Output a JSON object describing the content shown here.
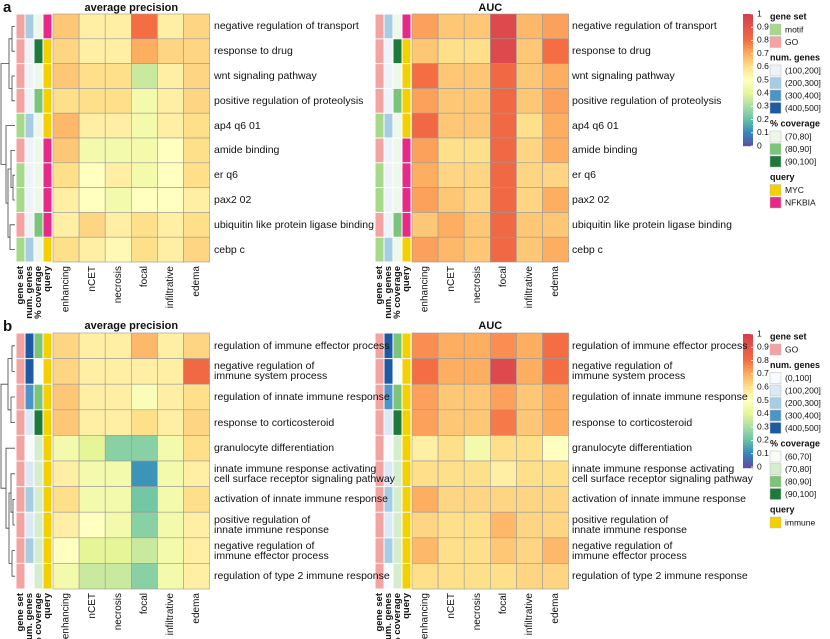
{
  "panels": [
    {
      "label": "a",
      "rows": [
        "negative regulation of transport",
        "response to drug",
        "wnt signaling pathway",
        "positive regulation of proteolysis",
        "ap4 q6 01",
        "amide binding",
        "er q6",
        "pax2 02",
        "ubiquitin like protein ligase binding",
        "cebp c"
      ],
      "annotations": [
        {
          "name": "gene set",
          "values": [
            "GO",
            "GO",
            "GO",
            "GO",
            "motif",
            "GO",
            "motif",
            "motif",
            "GO",
            "motif"
          ]
        },
        {
          "name": "num. genes",
          "values": [
            "(200,300]",
            "(100,200]",
            "(100,200]",
            "(100,200]",
            "(200,300]",
            "(100,200]",
            "(100,200]",
            "(100,200]",
            "(100,200]",
            "(200,300]"
          ]
        },
        {
          "name": "% coverage",
          "values": [
            "(70,80]",
            "(90,100]",
            "(70,80]",
            "(80,90]",
            "(70,80]",
            "(70,80]",
            "(70,80]",
            "(70,80]",
            "(80,90]",
            "(70,80]"
          ]
        },
        {
          "name": "query",
          "values": [
            "NFKBIA",
            "MYC",
            "MYC",
            "MYC",
            "MYC",
            "NFKBIA",
            "NFKBIA",
            "NFKBIA",
            "NFKBIA",
            "MYC"
          ]
        }
      ],
      "heatmaps": [
        {
          "title": "average precision",
          "columns": [
            "enhancing",
            "nCET",
            "necrosis",
            "focal",
            "infiltrative",
            "edema"
          ],
          "values": [
            [
              0.65,
              0.55,
              0.55,
              0.8,
              0.55,
              0.62
            ],
            [
              0.62,
              0.55,
              0.55,
              0.7,
              0.62,
              0.62
            ],
            [
              0.65,
              0.6,
              0.6,
              0.35,
              0.55,
              0.62
            ],
            [
              0.6,
              0.6,
              0.6,
              0.45,
              0.55,
              0.62
            ],
            [
              0.68,
              0.55,
              0.55,
              0.45,
              0.55,
              0.6
            ],
            [
              0.65,
              0.45,
              0.45,
              0.45,
              0.5,
              0.6
            ],
            [
              0.6,
              0.5,
              0.55,
              0.45,
              0.5,
              0.6
            ],
            [
              0.55,
              0.5,
              0.45,
              0.5,
              0.5,
              0.55
            ],
            [
              0.55,
              0.62,
              0.55,
              0.6,
              0.55,
              0.6
            ],
            [
              0.6,
              0.55,
              0.52,
              0.6,
              0.55,
              0.62
            ]
          ]
        },
        {
          "title": "AUC",
          "columns": [
            "enhancing",
            "nCET",
            "necrosis",
            "focal",
            "infiltrative",
            "edema"
          ],
          "values": [
            [
              0.72,
              0.65,
              0.65,
              0.95,
              0.68,
              0.72
            ],
            [
              0.65,
              0.6,
              0.6,
              0.95,
              0.65,
              0.8
            ],
            [
              0.8,
              0.65,
              0.65,
              0.82,
              0.65,
              0.7
            ],
            [
              0.72,
              0.65,
              0.65,
              0.82,
              0.65,
              0.72
            ],
            [
              0.82,
              0.65,
              0.65,
              0.82,
              0.6,
              0.7
            ],
            [
              0.72,
              0.6,
              0.6,
              0.82,
              0.62,
              0.7
            ],
            [
              0.7,
              0.62,
              0.62,
              0.82,
              0.62,
              0.62
            ],
            [
              0.72,
              0.65,
              0.62,
              0.82,
              0.62,
              0.7
            ],
            [
              0.65,
              0.7,
              0.65,
              0.82,
              0.65,
              0.65
            ],
            [
              0.72,
              0.68,
              0.65,
              0.82,
              0.65,
              0.7
            ]
          ]
        }
      ],
      "scale": {
        "ticks": [
          1,
          0.9,
          0.8,
          0.7,
          0.6,
          0.5,
          0.4,
          0.3,
          0.2,
          0.1,
          0
        ],
        "colors": [
          "#d53e4f",
          "#e5534b",
          "#f46d43",
          "#fdae61",
          "#fee08b",
          "#ffffbf",
          "#e6f598",
          "#abdda4",
          "#66c2a5",
          "#3288bd",
          "#5e4fa2"
        ]
      },
      "legends": [
        {
          "title": "gene set",
          "levels": [
            {
              "name": "motif",
              "color": "#a6d98a"
            },
            {
              "name": "GO",
              "color": "#f4a3a3"
            }
          ]
        },
        {
          "title": "num. genes",
          "levels": [
            {
              "name": "(100,200]",
              "color": "#eef3fa"
            },
            {
              "name": "(200,300]",
              "color": "#a6cde3"
            },
            {
              "name": "(300,400]",
              "color": "#4d94c8"
            },
            {
              "name": "(400,500]",
              "color": "#1c5aa3"
            }
          ]
        },
        {
          "title": "% coverage",
          "levels": [
            {
              "name": "(70,80]",
              "color": "#eef8ea"
            },
            {
              "name": "(80,90]",
              "color": "#7ac57a"
            },
            {
              "name": "(90,100]",
              "color": "#1e7a3a"
            }
          ]
        },
        {
          "title": "query",
          "levels": [
            {
              "name": "MYC",
              "color": "#f5d000"
            },
            {
              "name": "NFKBIA",
              "color": "#e7298a"
            }
          ]
        }
      ]
    },
    {
      "label": "b",
      "rows": [
        "regulation of immune effector process",
        "negative regulation of\nimmune system process",
        "regulation of innate immune response",
        "response to corticosteroid",
        "granulocyte differentiation",
        "innate immune response activating\ncell surface receptor signaling pathway",
        "activation of innate immune response",
        "positive regulation of\ninnate immune response",
        "negative regulation of\nimmune effector process",
        "regulation of type 2 immune response"
      ],
      "annotations": [
        {
          "name": "gene set",
          "values": [
            "GO",
            "GO",
            "GO",
            "GO",
            "GO",
            "GO",
            "GO",
            "GO",
            "GO",
            "GO"
          ]
        },
        {
          "name": "num. genes",
          "values": [
            "(400,500]",
            "(400,500]",
            "(300,400]",
            "(100,200]",
            "(0,100]",
            "(100,200]",
            "(200,300]",
            "(100,200]",
            "(200,300]",
            "(0,100]"
          ]
        },
        {
          "name": "% coverage",
          "values": [
            "(80,90]",
            "(60,70]",
            "(80,90]",
            "(90,100]",
            "(70,80]",
            "(70,80]",
            "(70,80]",
            "(70,80]",
            "(70,80]",
            "(70,80]"
          ]
        },
        {
          "name": "query",
          "values": [
            "immune",
            "immune",
            "immune",
            "immune",
            "immune",
            "immune",
            "immune",
            "immune",
            "immune",
            "immune"
          ]
        }
      ],
      "heatmaps": [
        {
          "title": "average precision",
          "columns": [
            "enhancing",
            "nCET",
            "necrosis",
            "focal",
            "infiltrative",
            "edema"
          ],
          "values": [
            [
              0.62,
              0.55,
              0.55,
              0.68,
              0.55,
              0.62
            ],
            [
              0.62,
              0.55,
              0.55,
              0.55,
              0.55,
              0.82
            ],
            [
              0.65,
              0.55,
              0.55,
              0.48,
              0.55,
              0.6
            ],
            [
              0.65,
              0.55,
              0.55,
              0.6,
              0.55,
              0.62
            ],
            [
              0.45,
              0.4,
              0.25,
              0.25,
              0.45,
              0.6
            ],
            [
              0.55,
              0.45,
              0.45,
              0.12,
              0.45,
              0.55
            ],
            [
              0.6,
              0.45,
              0.45,
              0.22,
              0.45,
              0.6
            ],
            [
              0.55,
              0.5,
              0.45,
              0.25,
              0.45,
              0.55
            ],
            [
              0.5,
              0.4,
              0.4,
              0.35,
              0.45,
              0.55
            ],
            [
              0.45,
              0.35,
              0.35,
              0.25,
              0.45,
              0.55
            ]
          ]
        },
        {
          "title": "AUC",
          "columns": [
            "enhancing",
            "nCET",
            "necrosis",
            "focal",
            "infiltrative",
            "edema"
          ],
          "values": [
            [
              0.75,
              0.7,
              0.7,
              0.75,
              0.7,
              0.8
            ],
            [
              0.8,
              0.7,
              0.7,
              0.95,
              0.7,
              0.8
            ],
            [
              0.72,
              0.65,
              0.65,
              0.72,
              0.65,
              0.7
            ],
            [
              0.72,
              0.65,
              0.65,
              0.78,
              0.65,
              0.7
            ],
            [
              0.55,
              0.6,
              0.45,
              0.6,
              0.6,
              0.5
            ],
            [
              0.6,
              0.6,
              0.6,
              0.55,
              0.6,
              0.6
            ],
            [
              0.7,
              0.62,
              0.62,
              0.62,
              0.62,
              0.62
            ],
            [
              0.62,
              0.6,
              0.6,
              0.68,
              0.62,
              0.62
            ],
            [
              0.68,
              0.6,
              0.6,
              0.65,
              0.62,
              0.68
            ],
            [
              0.6,
              0.6,
              0.6,
              0.6,
              0.62,
              0.62
            ]
          ]
        }
      ],
      "scale": {
        "ticks": [
          1,
          0.9,
          0.8,
          0.7,
          0.6,
          0.5,
          0.4,
          0.3,
          0.2,
          0.1,
          0
        ],
        "colors": [
          "#d53e4f",
          "#e5534b",
          "#f46d43",
          "#fdae61",
          "#fee08b",
          "#ffffbf",
          "#e6f598",
          "#abdda4",
          "#66c2a5",
          "#3288bd",
          "#5e4fa2"
        ]
      },
      "legends": [
        {
          "title": "gene set",
          "levels": [
            {
              "name": "GO",
              "color": "#f4a3a3"
            }
          ]
        },
        {
          "title": "num. genes",
          "levels": [
            {
              "name": "(0,100]",
              "color": "#f7fbff"
            },
            {
              "name": "(100,200]",
              "color": "#dbe8f5"
            },
            {
              "name": "(200,300]",
              "color": "#a6cde3"
            },
            {
              "name": "(300,400]",
              "color": "#4d94c8"
            },
            {
              "name": "(400,500]",
              "color": "#1c5aa3"
            }
          ]
        },
        {
          "title": "% coverage",
          "levels": [
            {
              "name": "(60,70]",
              "color": "#f7fcf5"
            },
            {
              "name": "(70,80]",
              "color": "#d4eecd"
            },
            {
              "name": "(80,90]",
              "color": "#7ac57a"
            },
            {
              "name": "(90,100]",
              "color": "#1e7a3a"
            }
          ]
        },
        {
          "title": "query",
          "levels": [
            {
              "name": "immune",
              "color": "#f5d000"
            }
          ]
        }
      ]
    }
  ]
}
